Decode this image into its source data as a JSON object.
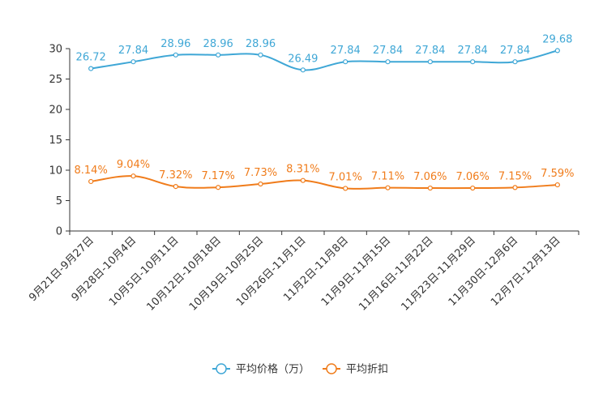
{
  "chart_data": {
    "type": "line",
    "title": "",
    "xlabel": "",
    "ylabel": "",
    "ylim": [
      0,
      30
    ],
    "yticks": [
      0,
      5,
      10,
      15,
      20,
      25,
      30
    ],
    "categories": [
      "9月21日-9月27日",
      "9月28日-10月4日",
      "10月5日-10月11日",
      "10月12日-10月18日",
      "10月19日-10月25日",
      "10月26日-11月1日",
      "11月2日-11月8日",
      "11月9日-11月15日",
      "11月16日-11月22日",
      "11月23日-11月29日",
      "11月30日-12月6日",
      "12月7日-12月13日"
    ],
    "series": [
      {
        "name": "平均价格（万）",
        "color": "#3fa7d6",
        "values": [
          26.72,
          27.84,
          28.96,
          28.96,
          28.96,
          26.49,
          27.84,
          27.84,
          27.84,
          27.84,
          27.84,
          29.68
        ],
        "labels": [
          "26.72",
          "27.84",
          "28.96",
          "28.96",
          "28.96",
          "26.49",
          "27.84",
          "27.84",
          "27.84",
          "27.84",
          "27.84",
          "29.68"
        ]
      },
      {
        "name": "平均折扣",
        "color": "#f07c1b",
        "values": [
          8.14,
          9.04,
          7.32,
          7.17,
          7.73,
          8.31,
          7.01,
          7.11,
          7.06,
          7.06,
          7.15,
          7.59
        ],
        "labels": [
          "8.14%",
          "9.04%",
          "7.32%",
          "7.17%",
          "7.73%",
          "8.31%",
          "7.01%",
          "7.11%",
          "7.06%",
          "7.06%",
          "7.15%",
          "7.59%"
        ]
      }
    ],
    "legend_position": "bottom-center"
  }
}
